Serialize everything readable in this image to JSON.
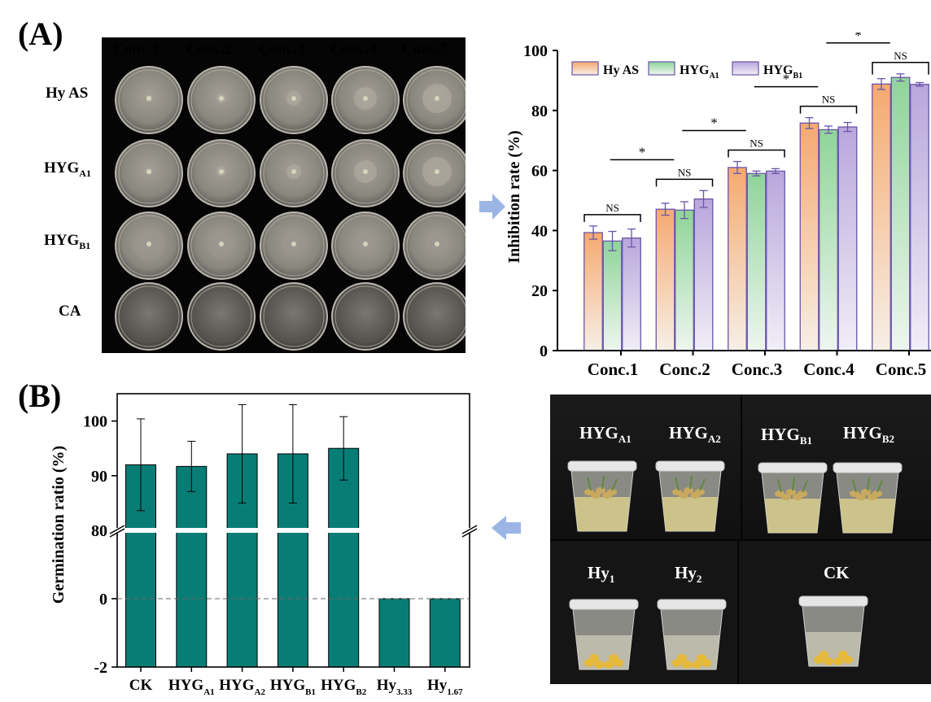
{
  "panel_a_label": "(A)",
  "panel_b_label": "(B)",
  "plates": {
    "columns": [
      "Conc.1",
      "Conc.2",
      "Conc.3",
      "Conc.4",
      "Conc.5"
    ],
    "rows": [
      {
        "name": "Hy AS",
        "sub": ""
      },
      {
        "name": "HYG",
        "sub": "A1"
      },
      {
        "name": "HYG",
        "sub": "B1"
      },
      {
        "name": "CA",
        "sub": ""
      }
    ]
  },
  "seed_photo": {
    "cups": [
      {
        "name": "HYG",
        "sub": "A1"
      },
      {
        "name": "HYG",
        "sub": "A2"
      },
      {
        "name": "HYG",
        "sub": "B1"
      },
      {
        "name": "HYG",
        "sub": "B2"
      },
      {
        "name": "Hy",
        "sub": "1"
      },
      {
        "name": "Hy",
        "sub": "2"
      },
      {
        "name": "CK",
        "sub": ""
      }
    ]
  },
  "colors": {
    "orange": "#f5a970",
    "green": "#8fd49a",
    "purple": "#b9a6dc",
    "bar_edge": "#6a55a8",
    "teal": "#087d76",
    "arrow": "#8aa8e0"
  },
  "chart_data": [
    {
      "type": "bar",
      "ylabel": "Inhibition rate (%)",
      "xlabel": "",
      "ylim": [
        0,
        100
      ],
      "yticks": [
        "0",
        "20",
        "40",
        "60",
        "80",
        "100"
      ],
      "categories": [
        "Conc.1",
        "Conc.2",
        "Conc.3",
        "Conc.4",
        "Conc.5"
      ],
      "legend_position": "top-left",
      "series": [
        {
          "name": "Hy AS",
          "name_sub": "",
          "values": [
            39.3,
            47.1,
            61.0,
            75.8,
            88.8
          ],
          "errors": [
            2.2,
            2.0,
            2.0,
            1.8,
            1.8
          ]
        },
        {
          "name": "HYG",
          "name_sub": "A1",
          "values": [
            36.5,
            46.8,
            59.0,
            73.6,
            91.0
          ],
          "errors": [
            3.2,
            2.8,
            0.8,
            1.2,
            1.2
          ]
        },
        {
          "name": "HYG",
          "name_sub": "B1",
          "values": [
            37.5,
            50.5,
            59.8,
            74.5,
            88.7
          ],
          "errors": [
            3.0,
            2.8,
            0.8,
            1.5,
            0.6
          ]
        }
      ],
      "annotations": {
        "within": [
          "NS",
          "NS",
          "NS",
          "NS",
          "NS"
        ],
        "between": [
          "*",
          "*",
          "*",
          "*"
        ]
      }
    },
    {
      "type": "bar",
      "ylabel": "Germination ratio (%)",
      "xlabel": "",
      "axis_break": [
        0,
        80
      ],
      "ylim": [
        -2,
        105
      ],
      "yticks": [
        "-2",
        "0",
        "80",
        "90",
        "100"
      ],
      "categories": [
        {
          "name": "CK",
          "sub": ""
        },
        {
          "name": "HYG",
          "sub": "A1"
        },
        {
          "name": "HYG",
          "sub": "A2"
        },
        {
          "name": "HYG",
          "sub": "B1"
        },
        {
          "name": "HYG",
          "sub": "B2"
        },
        {
          "name": "Hy",
          "sub": "3.33"
        },
        {
          "name": "Hy",
          "sub": "1.67"
        }
      ],
      "values": [
        92.0,
        91.7,
        94.0,
        94.0,
        95.0,
        0,
        0
      ],
      "errors": [
        8.4,
        4.6,
        9.0,
        9.0,
        5.8,
        0,
        0
      ]
    }
  ]
}
